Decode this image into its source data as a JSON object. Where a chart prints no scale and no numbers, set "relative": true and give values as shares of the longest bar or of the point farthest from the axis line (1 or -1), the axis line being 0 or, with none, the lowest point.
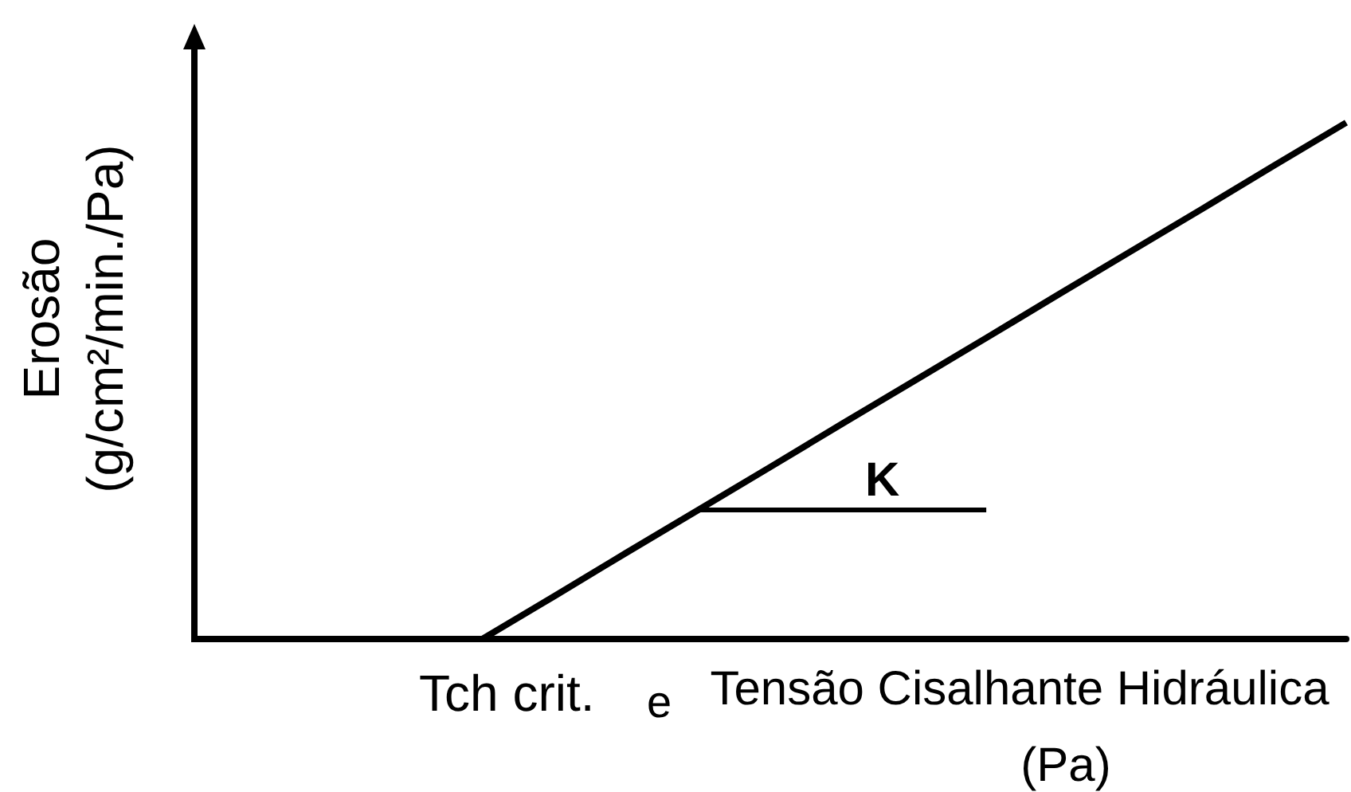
{
  "chart_data": {
    "type": "line",
    "relative": true,
    "xlabel": "Tensão Cisalhante Hidráulica (Pa)",
    "ylabel": "Erosão (g/cm²/min./Pa)",
    "categories": [
      null,
      null,
      null,
      null,
      null,
      null,
      null,
      null,
      null,
      null,
      null,
      null,
      null,
      null,
      null,
      null,
      null
    ],
    "series": [
      {
        "color": "#000000",
        "values": [
          null,
          null,
          null,
          null,
          0,
          0.083,
          0.167,
          0.25,
          0.333,
          0.417,
          0.5,
          0.583,
          0.667,
          0.75,
          0.833,
          0.917,
          1
        ]
      },
      {
        "color": "#000000",
        "values": [
          null,
          null,
          null,
          null,
          null,
          null,
          null,
          0.25,
          0.25,
          0.25,
          0.25,
          0.25,
          null,
          null,
          null,
          null,
          null
        ]
      }
    ],
    "annotations": [
      "Tch crit.",
      "e",
      "K"
    ]
  }
}
